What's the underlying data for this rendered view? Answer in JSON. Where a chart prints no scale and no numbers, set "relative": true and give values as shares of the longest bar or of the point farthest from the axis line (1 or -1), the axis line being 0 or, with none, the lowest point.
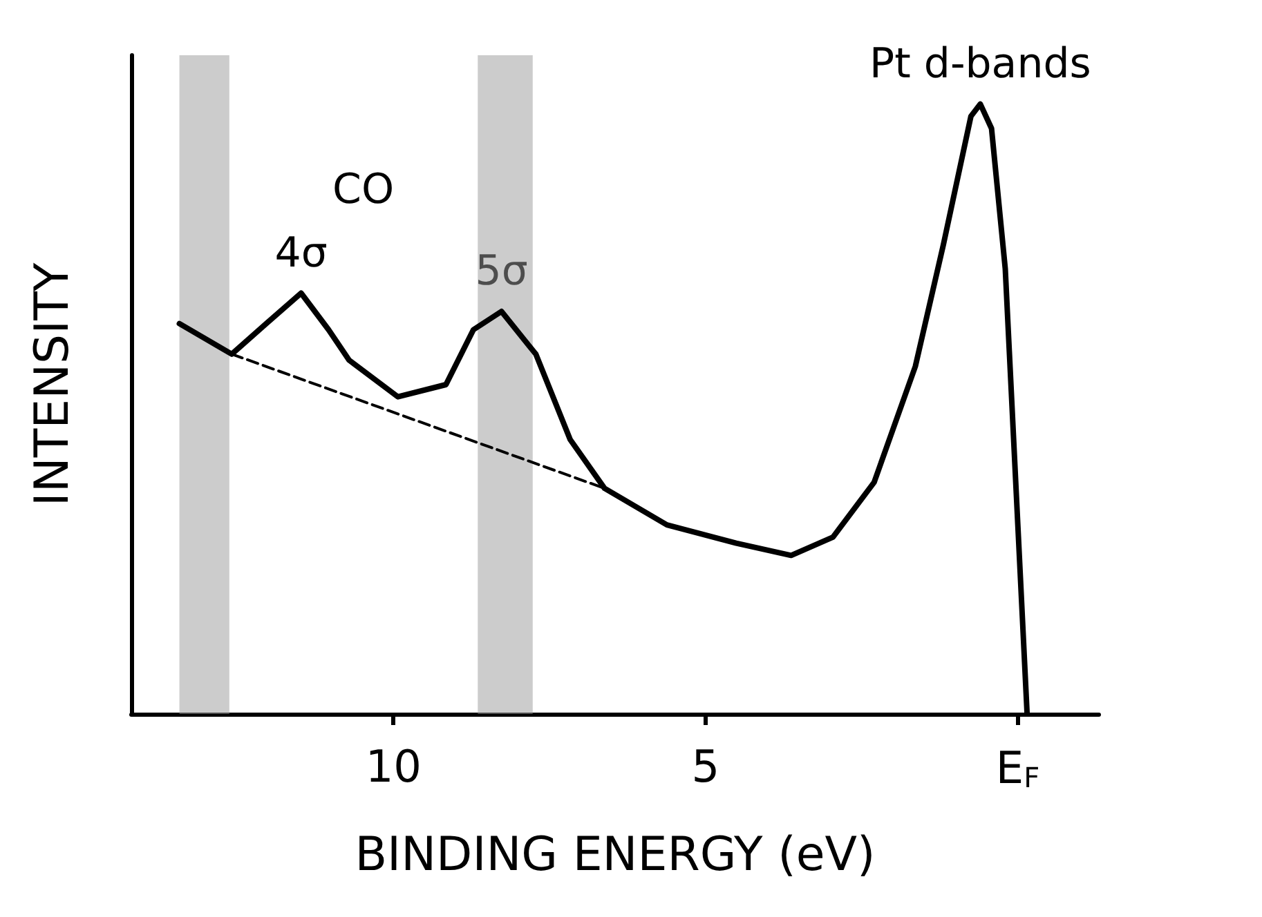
{
  "chart_data": {
    "type": "line",
    "relative": true,
    "xlabel": "BINDING ENERGY (eV)",
    "ylabel": "INTENSITY",
    "xlim": [
      14.2,
      -1.3
    ],
    "xticks": [
      10,
      5,
      {
        "value": 0,
        "label": "E$_{F}$"
      }
    ],
    "tick_labels": "x",
    "series": [
      {
        "color": "#000000",
        "x": [
          13.43,
          12.59,
          12.04,
          11.48,
          11.04,
          10.71,
          9.93,
          9.16,
          8.72,
          8.27,
          7.72,
          7.17,
          6.62,
          5.62,
          4.51,
          3.63,
          2.96,
          2.3,
          1.64,
          1.19,
          0.75,
          0.6,
          0.42,
          0.2,
          -0.15
        ],
        "values": [
          0.64,
          0.59,
          0.64,
          0.69,
          0.63,
          0.58,
          0.52,
          0.54,
          0.63,
          0.66,
          0.59,
          0.45,
          0.37,
          0.31,
          0.28,
          0.26,
          0.29,
          0.38,
          0.57,
          0.77,
          0.98,
          1,
          0.96,
          0.73,
          0
        ]
      },
      {
        "color": "#000000",
        "line_style": "dashed",
        "x": [
          12.59,
          6.62
        ],
        "values": [
          0.59,
          0.37
        ]
      }
    ],
    "bands": [
      {
        "axis": "x",
        "from": 13.43,
        "to": 12.63,
        "color": "#999999"
      },
      {
        "axis": "x",
        "from": 8.65,
        "to": 7.77,
        "color": "#999999"
      }
    ],
    "annotations": [
      "CO",
      {
        "text": "4σ",
        "x": 11.48,
        "y": 0.69
      },
      {
        "text": "5σ",
        "x": 8.27,
        "y": 0.66
      },
      {
        "text": "Pt d-bands",
        "x": 0.6,
        "y": 1
      }
    ]
  }
}
